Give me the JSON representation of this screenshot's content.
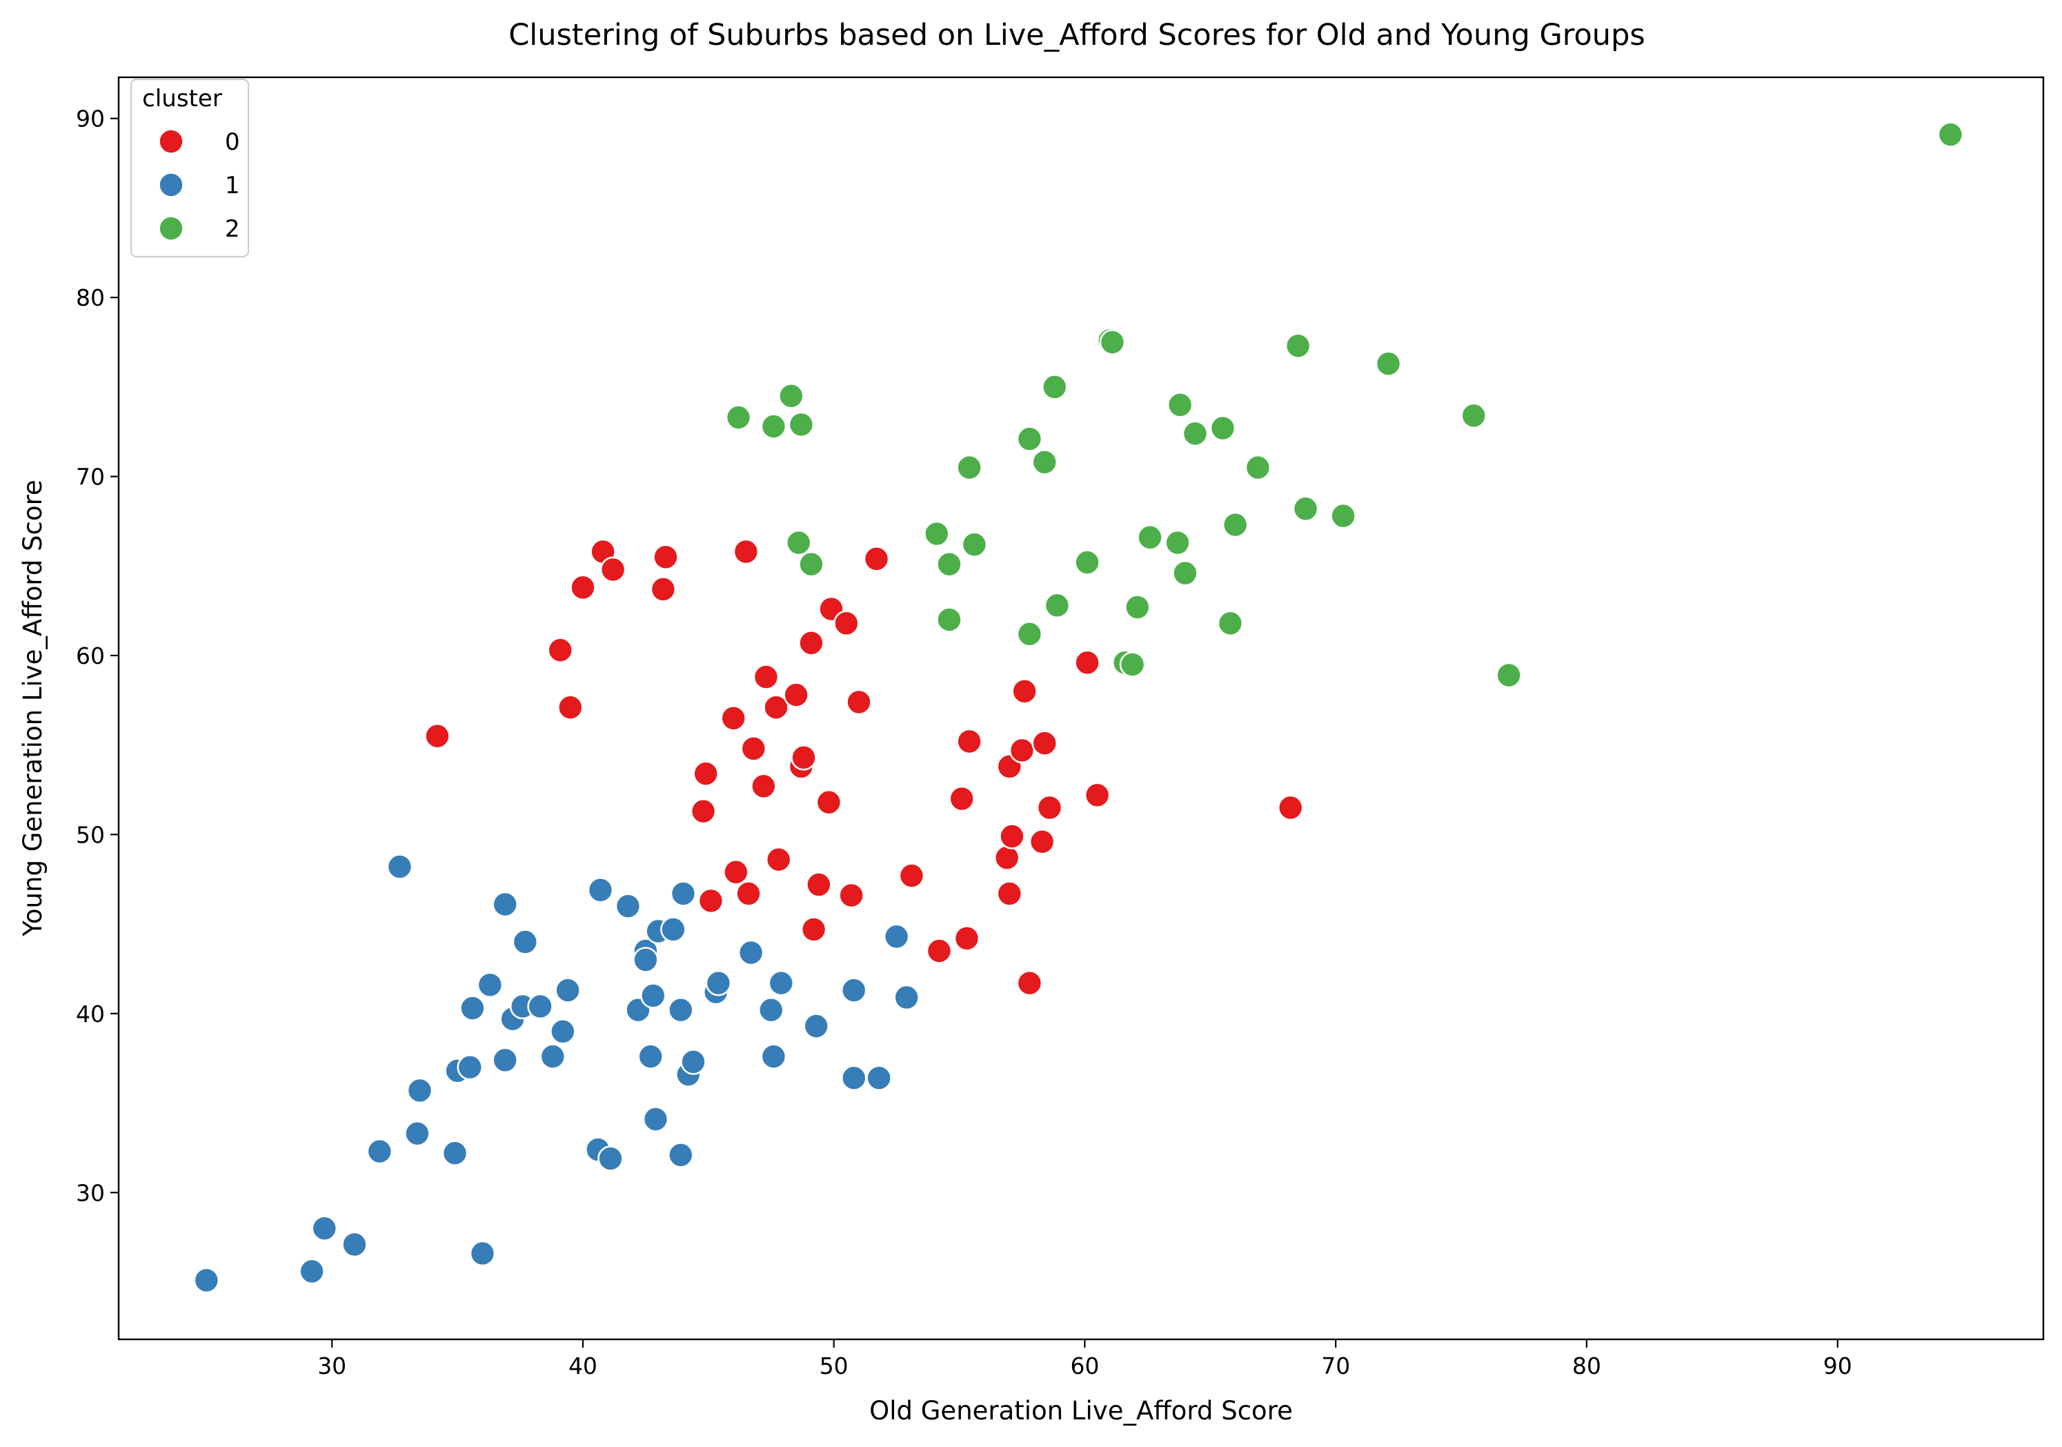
{
  "chart_data": {
    "type": "scatter",
    "title": "Clustering of Suburbs based on Live_Afford Scores for Old and Young Groups",
    "xlabel": "Old Generation Live_Afford Score",
    "ylabel": "Young Generation Live_Afford Score",
    "xlim": [
      21.5,
      98.2
    ],
    "ylim": [
      21.8,
      92.3
    ],
    "xticks": [
      30,
      40,
      50,
      60,
      70,
      80,
      90
    ],
    "yticks": [
      30,
      40,
      50,
      60,
      70,
      80,
      90
    ],
    "grid": false,
    "legend": {
      "title": "cluster",
      "position": "top-left"
    },
    "series": [
      {
        "name": "0",
        "color": "#e41a1c",
        "points": [
          [
            34.2,
            55.5
          ],
          [
            39.1,
            60.3
          ],
          [
            39.5,
            57.1
          ],
          [
            40.0,
            63.8
          ],
          [
            40.8,
            65.8
          ],
          [
            41.2,
            64.8
          ],
          [
            43.2,
            63.7
          ],
          [
            43.3,
            65.5
          ],
          [
            44.8,
            51.3
          ],
          [
            44.9,
            53.4
          ],
          [
            45.1,
            46.3
          ],
          [
            46.0,
            56.5
          ],
          [
            46.1,
            47.9
          ],
          [
            46.5,
            65.8
          ],
          [
            46.6,
            46.7
          ],
          [
            46.8,
            54.8
          ],
          [
            47.2,
            52.7
          ],
          [
            47.3,
            58.8
          ],
          [
            47.7,
            57.1
          ],
          [
            47.8,
            48.6
          ],
          [
            48.5,
            57.8
          ],
          [
            48.7,
            53.8
          ],
          [
            48.8,
            54.3
          ],
          [
            49.1,
            60.7
          ],
          [
            49.2,
            44.7
          ],
          [
            49.4,
            47.2
          ],
          [
            49.8,
            51.8
          ],
          [
            49.9,
            62.6
          ],
          [
            50.5,
            61.8
          ],
          [
            50.7,
            46.6
          ],
          [
            51.0,
            57.4
          ],
          [
            51.7,
            65.4
          ],
          [
            53.1,
            47.7
          ],
          [
            54.2,
            43.5
          ],
          [
            55.1,
            52.0
          ],
          [
            55.3,
            44.2
          ],
          [
            55.4,
            55.2
          ],
          [
            56.9,
            48.7
          ],
          [
            57.0,
            46.7
          ],
          [
            57.0,
            53.8
          ],
          [
            57.1,
            49.9
          ],
          [
            57.5,
            54.7
          ],
          [
            57.6,
            58.0
          ],
          [
            57.8,
            41.7
          ],
          [
            58.3,
            49.6
          ],
          [
            58.4,
            55.1
          ],
          [
            58.6,
            51.5
          ],
          [
            60.1,
            59.6
          ],
          [
            60.5,
            52.2
          ],
          [
            68.2,
            51.5
          ]
        ]
      },
      {
        "name": "1",
        "color": "#377eb8",
        "points": [
          [
            25.0,
            25.1
          ],
          [
            29.2,
            25.6
          ],
          [
            29.7,
            28.0
          ],
          [
            30.9,
            27.1
          ],
          [
            31.9,
            32.3
          ],
          [
            32.7,
            48.2
          ],
          [
            33.4,
            33.3
          ],
          [
            33.5,
            35.7
          ],
          [
            34.9,
            32.2
          ],
          [
            35.0,
            36.8
          ],
          [
            35.5,
            37.0
          ],
          [
            35.6,
            40.3
          ],
          [
            36.0,
            26.6
          ],
          [
            36.3,
            41.6
          ],
          [
            36.9,
            46.1
          ],
          [
            36.9,
            37.4
          ],
          [
            37.2,
            39.7
          ],
          [
            37.6,
            40.4
          ],
          [
            37.7,
            44.0
          ],
          [
            38.3,
            40.4
          ],
          [
            38.8,
            37.6
          ],
          [
            39.2,
            39.0
          ],
          [
            39.4,
            41.3
          ],
          [
            40.6,
            32.4
          ],
          [
            40.7,
            46.9
          ],
          [
            41.1,
            31.9
          ],
          [
            41.8,
            46.0
          ],
          [
            42.2,
            40.2
          ],
          [
            42.5,
            43.5
          ],
          [
            42.5,
            43.0
          ],
          [
            42.7,
            37.6
          ],
          [
            42.8,
            41.0
          ],
          [
            42.9,
            34.1
          ],
          [
            43.0,
            44.6
          ],
          [
            43.6,
            44.7
          ],
          [
            43.9,
            32.1
          ],
          [
            43.9,
            40.2
          ],
          [
            44.0,
            46.7
          ],
          [
            44.2,
            36.6
          ],
          [
            44.4,
            37.3
          ],
          [
            45.3,
            41.2
          ],
          [
            45.4,
            41.7
          ],
          [
            46.7,
            43.4
          ],
          [
            47.5,
            40.2
          ],
          [
            47.6,
            37.6
          ],
          [
            47.9,
            41.7
          ],
          [
            49.3,
            39.3
          ],
          [
            50.8,
            41.3
          ],
          [
            50.8,
            36.4
          ],
          [
            51.8,
            36.4
          ],
          [
            52.5,
            44.3
          ],
          [
            52.9,
            40.9
          ]
        ]
      },
      {
        "name": "2",
        "color": "#4daf4a",
        "points": [
          [
            46.2,
            73.3
          ],
          [
            47.6,
            72.8
          ],
          [
            48.3,
            74.5
          ],
          [
            48.6,
            66.3
          ],
          [
            48.7,
            72.9
          ],
          [
            49.1,
            65.1
          ],
          [
            54.1,
            66.8
          ],
          [
            54.6,
            65.1
          ],
          [
            54.6,
            62.0
          ],
          [
            55.4,
            70.5
          ],
          [
            55.6,
            66.2
          ],
          [
            57.8,
            72.1
          ],
          [
            57.8,
            61.2
          ],
          [
            58.4,
            70.8
          ],
          [
            58.8,
            75.0
          ],
          [
            58.9,
            62.8
          ],
          [
            60.1,
            65.2
          ],
          [
            61.0,
            77.6
          ],
          [
            61.1,
            77.5
          ],
          [
            61.6,
            59.6
          ],
          [
            61.9,
            59.5
          ],
          [
            62.1,
            62.7
          ],
          [
            62.6,
            66.6
          ],
          [
            63.7,
            66.3
          ],
          [
            63.8,
            74.0
          ],
          [
            64.0,
            64.6
          ],
          [
            64.4,
            72.4
          ],
          [
            65.5,
            72.7
          ],
          [
            65.8,
            61.8
          ],
          [
            66.0,
            67.3
          ],
          [
            66.9,
            70.5
          ],
          [
            68.5,
            77.3
          ],
          [
            68.8,
            68.2
          ],
          [
            70.3,
            67.8
          ],
          [
            72.1,
            76.3
          ],
          [
            75.5,
            73.4
          ],
          [
            76.9,
            58.9
          ],
          [
            94.5,
            89.1
          ]
        ]
      }
    ]
  }
}
